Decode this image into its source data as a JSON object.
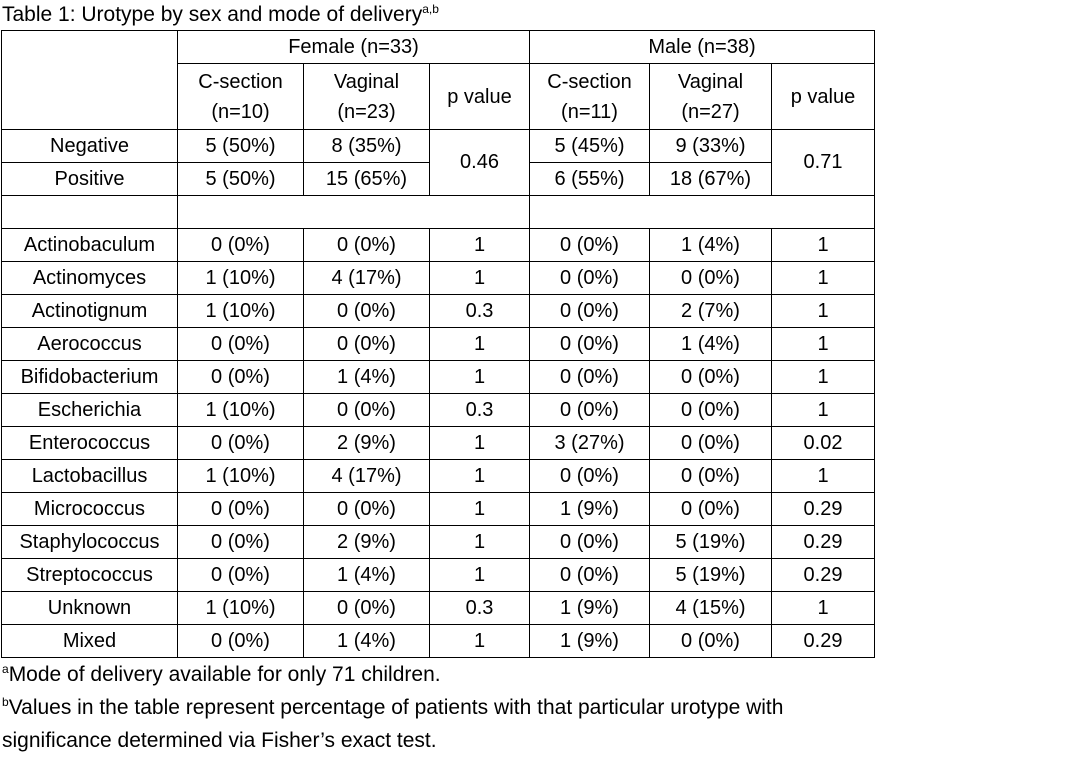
{
  "caption": {
    "text": "Table 1: Urotype by sex and mode of delivery",
    "sup": "a,b"
  },
  "header": {
    "female_group": "Female (n=33)",
    "male_group": "Male (n=38)",
    "female_csection": [
      "C-section",
      "(n=10)"
    ],
    "female_vaginal": [
      "Vaginal",
      "(n=23)"
    ],
    "female_p": "p value",
    "male_csection": [
      "C-section",
      "(n=11)"
    ],
    "male_vaginal": [
      "Vaginal",
      "(n=27)"
    ],
    "male_p": "p value"
  },
  "status_rows": [
    {
      "label": "Negative",
      "f_cs": "5 (50%)",
      "f_vag": "8 (35%)",
      "m_cs": "5 (45%)",
      "m_vag": "9 (33%)"
    },
    {
      "label": "Positive",
      "f_cs": "5 (50%)",
      "f_vag": "15 (65%)",
      "m_cs": "6 (55%)",
      "m_vag": "18 (67%)"
    }
  ],
  "status_p": {
    "female": "0.46",
    "male": "0.71"
  },
  "rows": [
    {
      "label": "Actinobaculum",
      "f_cs": "0 (0%)",
      "f_vag": "0 (0%)",
      "f_p": "1",
      "m_cs": "0 (0%)",
      "m_vag": "1 (4%)",
      "m_p": "1"
    },
    {
      "label": "Actinomyces",
      "f_cs": "1 (10%)",
      "f_vag": "4 (17%)",
      "f_p": "1",
      "m_cs": "0 (0%)",
      "m_vag": "0 (0%)",
      "m_p": "1"
    },
    {
      "label": "Actinotignum",
      "f_cs": "1 (10%)",
      "f_vag": "0 (0%)",
      "f_p": "0.3",
      "m_cs": "0 (0%)",
      "m_vag": "2 (7%)",
      "m_p": "1"
    },
    {
      "label": "Aerococcus",
      "f_cs": "0 (0%)",
      "f_vag": "0 (0%)",
      "f_p": "1",
      "m_cs": "0 (0%)",
      "m_vag": "1 (4%)",
      "m_p": "1"
    },
    {
      "label": "Bifidobacterium",
      "f_cs": "0 (0%)",
      "f_vag": "1 (4%)",
      "f_p": "1",
      "m_cs": "0 (0%)",
      "m_vag": "0 (0%)",
      "m_p": "1"
    },
    {
      "label": "Escherichia",
      "f_cs": "1 (10%)",
      "f_vag": "0 (0%)",
      "f_p": "0.3",
      "m_cs": "0 (0%)",
      "m_vag": "0 (0%)",
      "m_p": "1"
    },
    {
      "label": "Enterococcus",
      "f_cs": "0 (0%)",
      "f_vag": "2 (9%)",
      "f_p": "1",
      "m_cs": "3 (27%)",
      "m_vag": "0 (0%)",
      "m_p": "0.02"
    },
    {
      "label": "Lactobacillus",
      "f_cs": "1 (10%)",
      "f_vag": "4 (17%)",
      "f_p": "1",
      "m_cs": "0 (0%)",
      "m_vag": "0 (0%)",
      "m_p": "1"
    },
    {
      "label": "Micrococcus",
      "f_cs": "0 (0%)",
      "f_vag": "0 (0%)",
      "f_p": "1",
      "m_cs": "1 (9%)",
      "m_vag": "0 (0%)",
      "m_p": "0.29"
    },
    {
      "label": "Staphylococcus",
      "f_cs": "0 (0%)",
      "f_vag": "2 (9%)",
      "f_p": "1",
      "m_cs": "0 (0%)",
      "m_vag": "5 (19%)",
      "m_p": "0.29"
    },
    {
      "label": "Streptococcus",
      "f_cs": "0 (0%)",
      "f_vag": "1 (4%)",
      "f_p": "1",
      "m_cs": "0 (0%)",
      "m_vag": "5 (19%)",
      "m_p": "0.29"
    },
    {
      "label": "Unknown",
      "f_cs": "1 (10%)",
      "f_vag": "0 (0%)",
      "f_p": "0.3",
      "m_cs": "1 (9%)",
      "m_vag": "4 (15%)",
      "m_p": "1"
    },
    {
      "label": "Mixed",
      "f_cs": "0 (0%)",
      "f_vag": "1 (4%)",
      "f_p": "1",
      "m_cs": "1 (9%)",
      "m_vag": "0 (0%)",
      "m_p": "0.29"
    }
  ],
  "footnotes": [
    {
      "mark": "a",
      "text": "Mode of delivery available for only 71 children."
    },
    {
      "mark": "b",
      "text": "Values in the table represent percentage of patients with that particular urotype with"
    },
    {
      "mark": "",
      "text": "significance determined via Fisher’s exact test."
    }
  ]
}
